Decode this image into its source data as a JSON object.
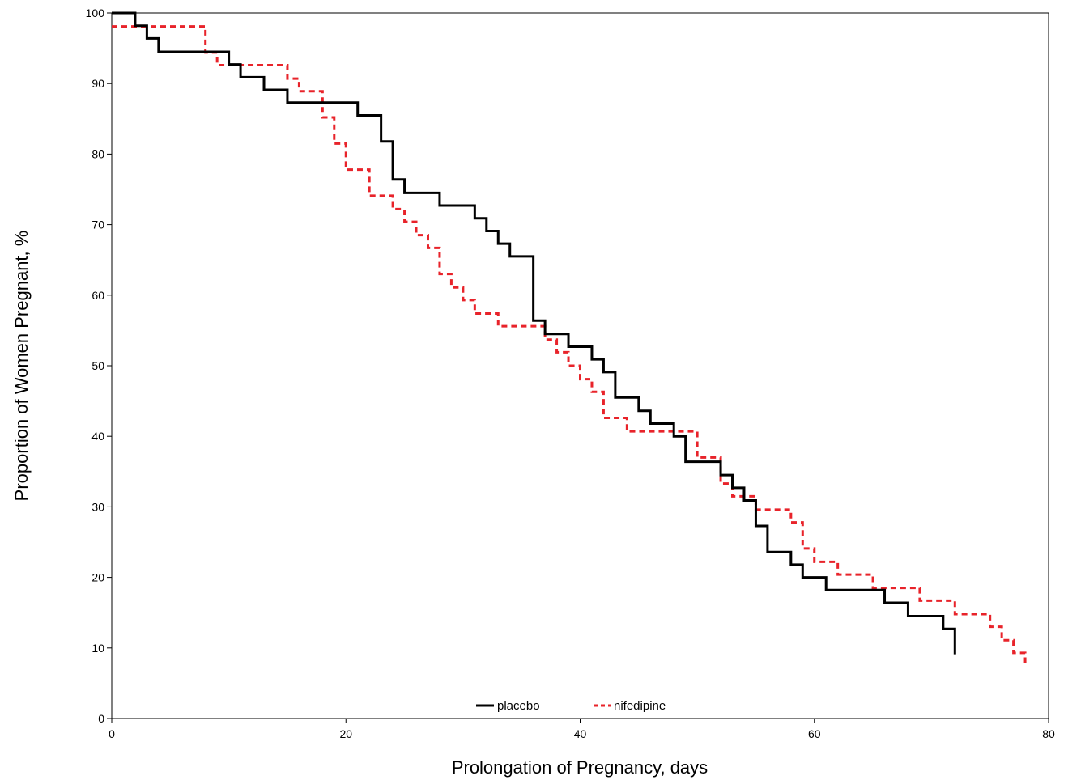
{
  "chart_data": {
    "type": "line",
    "step": true,
    "xlabel": "Prolongation of Pregnancy, days",
    "ylabel": "Proportion of Women Pregnant, %",
    "xlim": [
      0,
      80
    ],
    "ylim": [
      0,
      100
    ],
    "x_ticks": [
      "0",
      "20",
      "40",
      "60",
      "80"
    ],
    "y_ticks": [
      "0",
      "10",
      "20",
      "30",
      "40",
      "50",
      "60",
      "70",
      "80",
      "90",
      "100"
    ],
    "legend_position": "bottom-center",
    "grid": false,
    "series": [
      {
        "name": "placebo",
        "color": "#000000",
        "style": "solid",
        "points": [
          [
            0,
            100
          ],
          [
            2,
            98.2
          ],
          [
            3,
            96.4
          ],
          [
            4,
            94.5
          ],
          [
            10,
            92.7
          ],
          [
            11,
            90.9
          ],
          [
            13,
            89.1
          ],
          [
            15,
            87.3
          ],
          [
            21,
            85.5
          ],
          [
            23,
            81.8
          ],
          [
            24,
            76.4
          ],
          [
            25,
            74.5
          ],
          [
            28,
            72.7
          ],
          [
            31,
            70.9
          ],
          [
            32,
            69.1
          ],
          [
            33,
            67.3
          ],
          [
            34,
            65.5
          ],
          [
            36,
            56.4
          ],
          [
            37,
            54.5
          ],
          [
            39,
            52.7
          ],
          [
            41,
            50.9
          ],
          [
            42,
            49.1
          ],
          [
            43,
            45.5
          ],
          [
            45,
            43.6
          ],
          [
            46,
            41.8
          ],
          [
            48,
            40.0
          ],
          [
            49,
            36.4
          ],
          [
            52,
            34.5
          ],
          [
            53,
            32.7
          ],
          [
            54,
            30.9
          ],
          [
            55,
            27.3
          ],
          [
            56,
            23.6
          ],
          [
            58,
            21.8
          ],
          [
            59,
            20.0
          ],
          [
            61,
            18.2
          ],
          [
            66,
            16.4
          ],
          [
            68,
            14.5
          ],
          [
            71,
            12.7
          ],
          [
            72,
            9.1
          ]
        ]
      },
      {
        "name": "nifedipine",
        "color": "#e8232a",
        "style": "dashed",
        "points": [
          [
            0,
            98.1
          ],
          [
            8,
            94.4
          ],
          [
            9,
            92.6
          ],
          [
            15,
            90.7
          ],
          [
            16,
            88.9
          ],
          [
            18,
            85.2
          ],
          [
            19,
            81.5
          ],
          [
            20,
            77.8
          ],
          [
            22,
            74.1
          ],
          [
            24,
            72.2
          ],
          [
            25,
            70.4
          ],
          [
            26,
            68.5
          ],
          [
            27,
            66.7
          ],
          [
            28,
            63.0
          ],
          [
            29,
            61.1
          ],
          [
            30,
            59.3
          ],
          [
            31,
            57.4
          ],
          [
            33,
            55.6
          ],
          [
            37,
            53.7
          ],
          [
            38,
            51.9
          ],
          [
            39,
            50.0
          ],
          [
            40,
            48.1
          ],
          [
            41,
            46.3
          ],
          [
            42,
            42.6
          ],
          [
            44,
            40.7
          ],
          [
            50,
            37.0
          ],
          [
            52,
            33.3
          ],
          [
            53,
            31.5
          ],
          [
            55,
            29.6
          ],
          [
            58,
            27.8
          ],
          [
            59,
            24.1
          ],
          [
            60,
            22.2
          ],
          [
            62,
            20.4
          ],
          [
            65,
            18.5
          ],
          [
            69,
            16.7
          ],
          [
            72,
            14.8
          ],
          [
            75,
            13.0
          ],
          [
            76,
            11.1
          ],
          [
            77,
            9.3
          ],
          [
            78,
            7.4
          ]
        ]
      }
    ]
  }
}
